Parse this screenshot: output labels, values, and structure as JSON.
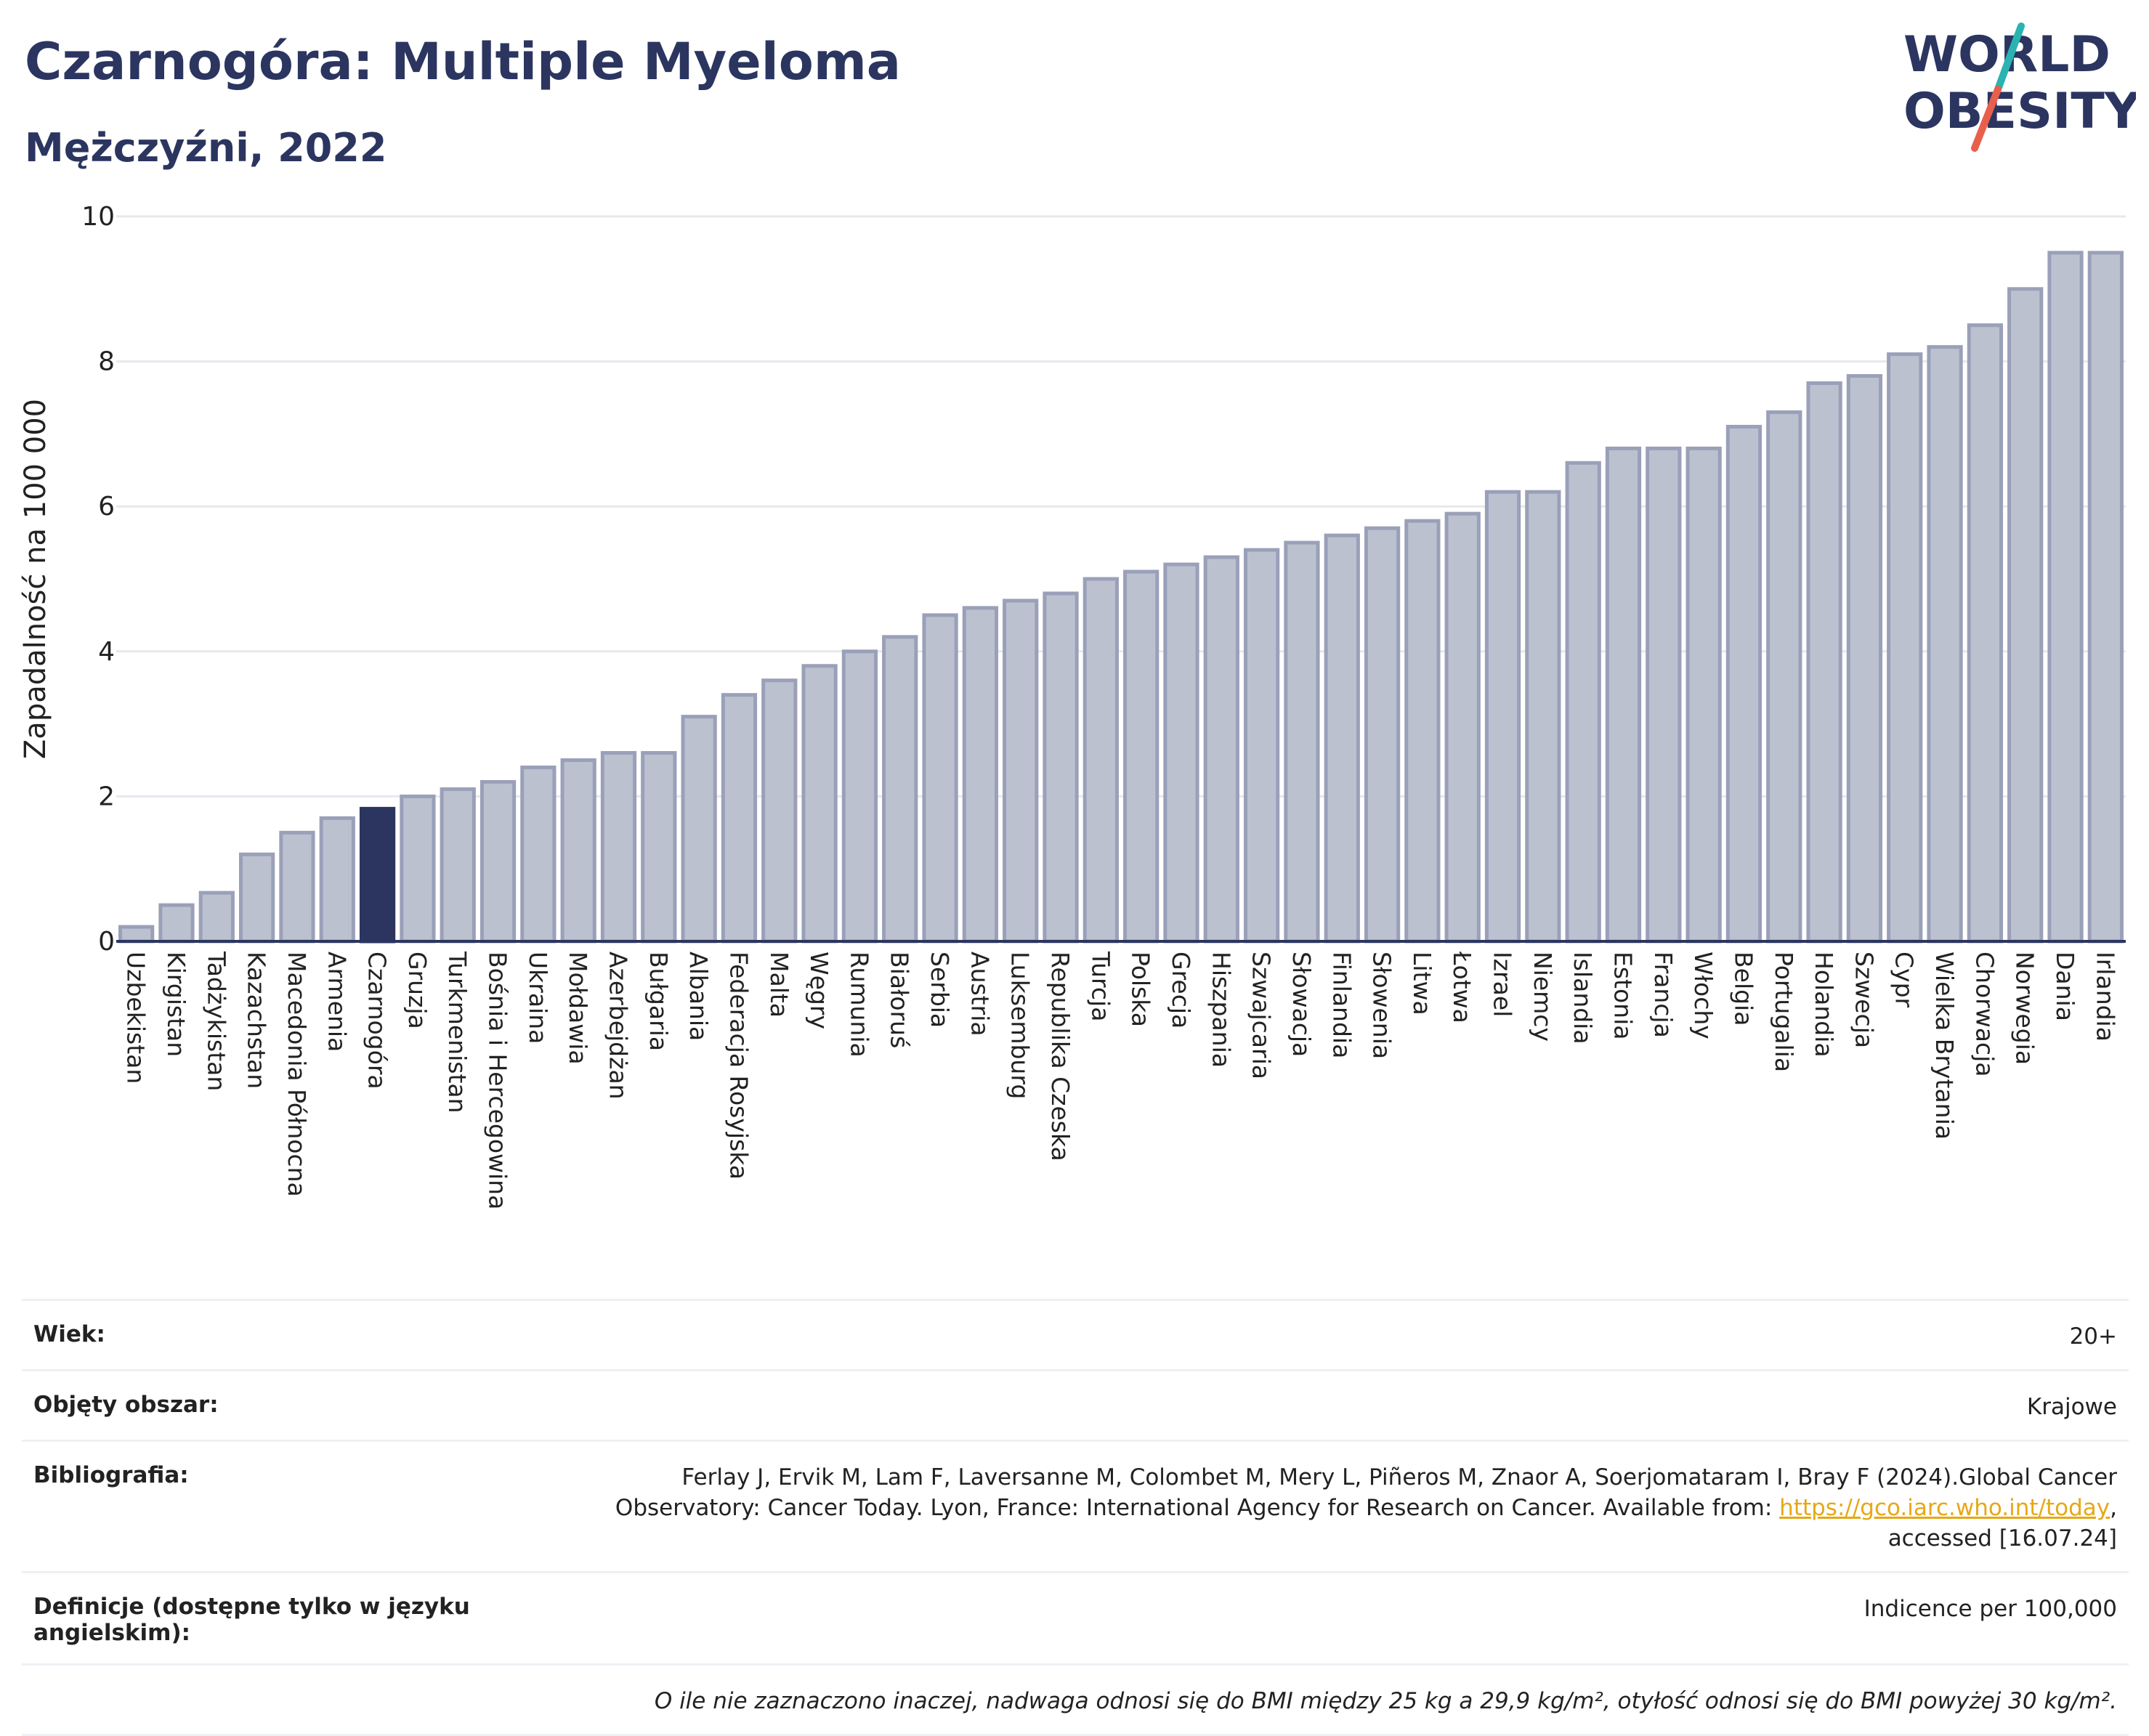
{
  "header": {
    "title": "Czarnogóra: Multiple Myeloma",
    "subtitle": "Mężczyźni, 2022",
    "logo_line1": "WORLD",
    "logo_line2": "OBESITY"
  },
  "colors": {
    "bar": "#bcc1d0",
    "bar_stroke": "#9aa0b8",
    "highlight": "#2b3560",
    "title": "#2b3560",
    "logo_slash_teal": "#2ab3b1",
    "logo_slash_red": "#e8604c",
    "link": "#e6a817"
  },
  "chart_data": {
    "type": "bar",
    "ylabel": "Zapadalność na 100 000",
    "ylim": [
      0,
      10
    ],
    "yticks": [
      0,
      2,
      4,
      6,
      8,
      10
    ],
    "grid": true,
    "highlight": "Czarnogóra",
    "categories": [
      "Uzbekistan",
      "Kirgistan",
      "Tadżykistan",
      "Kazachstan",
      "Macedonia Północna",
      "Armenia",
      "Czarnogóra",
      "Gruzja",
      "Turkmenistan",
      "Bośnia i Hercegowina",
      "Ukraina",
      "Mołdawia",
      "Azerbejdżan",
      "Bułgaria",
      "Albania",
      "Federacja Rosyjska",
      "Malta",
      "Węgry",
      "Rumunia",
      "Białoruś",
      "Serbia",
      "Austria",
      "Luksemburg",
      "Republika Czeska",
      "Turcja",
      "Polska",
      "Grecja",
      "Hiszpania",
      "Szwajcaria",
      "Słowacja",
      "Finlandia",
      "Słowenia",
      "Litwa",
      "Łotwa",
      "Izrael",
      "Niemcy",
      "Islandia",
      "Estonia",
      "Francja",
      "Włochy",
      "Belgia",
      "Portugalia",
      "Holandia",
      "Szwecja",
      "Cypr",
      "Wielka Brytania",
      "Chorwacja",
      "Norwegia",
      "Dania",
      "Irlandia"
    ],
    "values": [
      0.2,
      0.5,
      0.67,
      1.2,
      1.5,
      1.7,
      1.83,
      2.0,
      2.1,
      2.2,
      2.4,
      2.5,
      2.6,
      2.6,
      3.1,
      3.4,
      3.6,
      3.8,
      4.0,
      4.2,
      4.5,
      4.6,
      4.7,
      4.8,
      5.0,
      5.1,
      5.2,
      5.3,
      5.4,
      5.5,
      5.6,
      5.7,
      5.8,
      5.9,
      6.2,
      6.2,
      6.6,
      6.8,
      6.8,
      6.8,
      7.1,
      7.3,
      7.7,
      7.8,
      8.1,
      8.2,
      8.5,
      9.0,
      9.5,
      9.5
    ]
  },
  "meta": {
    "age_label": "Wiek:",
    "age_value": "20+",
    "area_label": "Objęty obszar:",
    "area_value": "Krajowe",
    "bib_label": "Bibliografia:",
    "bib_text_1": "Ferlay J, Ervik M, Lam F, Laversanne M, Colombet M, Mery L, Piñeros M, Znaor A, Soerjomataram I, Bray F (2024).Global Cancer",
    "bib_text_2": "Observatory: Cancer Today. Lyon, France: International Agency for Research on Cancer. Available from:",
    "bib_link": "https://gco.iarc.who.int/today",
    "bib_text_3": "accessed [16.07.24]",
    "def_label": "Definicje (dostępne tylko w języku angielskim):",
    "def_value": "Indicence per 100,000",
    "note": "O ile nie zaznaczono inaczej, nadwaga odnosi się do BMI między 25 kg a 29,9 kg/m², otyłość odnosi się do BMI powyżej 30 kg/m²."
  }
}
